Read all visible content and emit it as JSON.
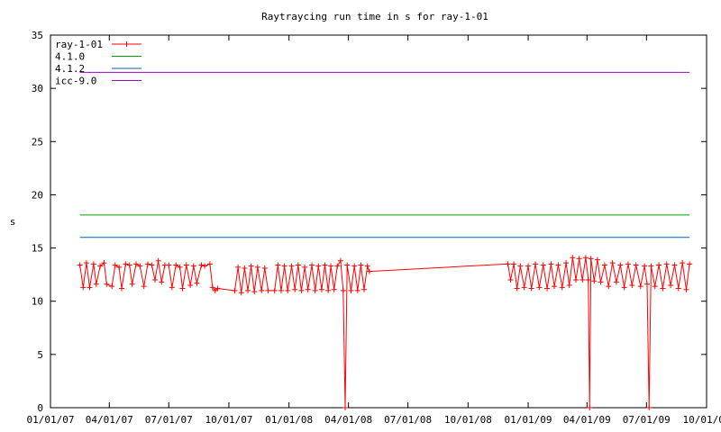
{
  "chart_data": {
    "type": "line",
    "title": "Raytraycing run time in s for ray-1-01",
    "xlabel": "",
    "ylabel": "s",
    "xlim": [
      "2007-01-01",
      "2009-10-01"
    ],
    "ylim": [
      0,
      35
    ],
    "x_ticks": [
      "01/01/07",
      "04/01/07",
      "07/01/07",
      "10/01/07",
      "01/01/08",
      "04/01/08",
      "07/01/08",
      "10/01/08",
      "01/01/09",
      "04/01/09",
      "07/01/09",
      "10/01/09"
    ],
    "y_ticks": [
      "0",
      "5",
      "10",
      "15",
      "20",
      "25",
      "30",
      "35"
    ],
    "grid": false,
    "legend_position": "top-left",
    "series": [
      {
        "name": "ray-1-01",
        "color": "#ff0000",
        "marker": "plus",
        "points": [
          [
            "2007-02-15",
            13.4
          ],
          [
            "2007-02-20",
            11.3
          ],
          [
            "2007-02-25",
            13.6
          ],
          [
            "2007-03-02",
            11.3
          ],
          [
            "2007-03-08",
            13.5
          ],
          [
            "2007-03-12",
            11.6
          ],
          [
            "2007-03-18",
            13.3
          ],
          [
            "2007-03-24",
            13.6
          ],
          [
            "2007-03-28",
            11.6
          ],
          [
            "2007-04-05",
            11.4
          ],
          [
            "2007-04-10",
            13.4
          ],
          [
            "2007-04-16",
            13.2
          ],
          [
            "2007-04-20",
            11.2
          ],
          [
            "2007-04-26",
            13.5
          ],
          [
            "2007-05-02",
            13.4
          ],
          [
            "2007-05-06",
            11.6
          ],
          [
            "2007-05-12",
            13.5
          ],
          [
            "2007-05-18",
            13.3
          ],
          [
            "2007-05-24",
            11.4
          ],
          [
            "2007-05-30",
            13.5
          ],
          [
            "2007-06-05",
            13.4
          ],
          [
            "2007-06-10",
            12.0
          ],
          [
            "2007-06-15",
            13.8
          ],
          [
            "2007-06-20",
            11.8
          ],
          [
            "2007-06-25",
            13.4
          ],
          [
            "2007-07-01",
            13.4
          ],
          [
            "2007-07-06",
            11.3
          ],
          [
            "2007-07-12",
            13.4
          ],
          [
            "2007-07-18",
            13.2
          ],
          [
            "2007-07-22",
            11.2
          ],
          [
            "2007-07-28",
            13.4
          ],
          [
            "2007-08-03",
            11.5
          ],
          [
            "2007-08-08",
            13.3
          ],
          [
            "2007-08-13",
            11.7
          ],
          [
            "2007-08-20",
            13.4
          ],
          [
            "2007-08-25",
            13.3
          ],
          [
            "2007-09-02",
            13.5
          ],
          [
            "2007-09-06",
            11.3
          ],
          [
            "2007-09-10",
            11.0
          ],
          [
            "2007-09-14",
            11.2
          ],
          [
            "2007-10-10",
            11.0
          ],
          [
            "2007-10-15",
            13.2
          ],
          [
            "2007-10-20",
            10.8
          ],
          [
            "2007-10-25",
            13.1
          ],
          [
            "2007-10-30",
            11.0
          ],
          [
            "2007-11-04",
            13.3
          ],
          [
            "2007-11-09",
            10.9
          ],
          [
            "2007-11-14",
            13.2
          ],
          [
            "2007-11-20",
            11.0
          ],
          [
            "2007-11-25",
            13.1
          ],
          [
            "2007-11-30",
            11.0
          ],
          [
            "2007-12-10",
            11.0
          ],
          [
            "2007-12-15",
            13.4
          ],
          [
            "2007-12-20",
            11.0
          ],
          [
            "2007-12-25",
            13.3
          ],
          [
            "2007-12-30",
            11.0
          ],
          [
            "2008-01-05",
            13.3
          ],
          [
            "2008-01-10",
            11.1
          ],
          [
            "2008-01-15",
            13.4
          ],
          [
            "2008-01-20",
            11.0
          ],
          [
            "2008-01-25",
            13.2
          ],
          [
            "2008-01-30",
            11.1
          ],
          [
            "2008-02-05",
            13.4
          ],
          [
            "2008-02-10",
            11.0
          ],
          [
            "2008-02-15",
            13.3
          ],
          [
            "2008-02-20",
            11.1
          ],
          [
            "2008-02-25",
            13.4
          ],
          [
            "2008-03-01",
            11.0
          ],
          [
            "2008-03-05",
            13.3
          ],
          [
            "2008-03-10",
            11.1
          ],
          [
            "2008-03-15",
            13.3
          ],
          [
            "2008-03-20",
            13.8
          ],
          [
            "2008-03-24",
            11.0
          ],
          [
            "2008-03-27",
            0.0
          ],
          [
            "2008-03-30",
            13.4
          ],
          [
            "2008-04-05",
            11.0
          ],
          [
            "2008-04-10",
            13.3
          ],
          [
            "2008-04-15",
            11.0
          ],
          [
            "2008-04-20",
            13.4
          ],
          [
            "2008-04-25",
            11.1
          ],
          [
            "2008-04-30",
            13.3
          ],
          [
            "2008-05-03",
            12.8
          ],
          [
            "2008-12-01",
            13.5
          ],
          [
            "2008-12-05",
            12.0
          ],
          [
            "2008-12-10",
            13.5
          ],
          [
            "2008-12-15",
            11.2
          ],
          [
            "2008-12-20",
            13.3
          ],
          [
            "2008-12-26",
            11.3
          ],
          [
            "2009-01-01",
            13.3
          ],
          [
            "2009-01-06",
            11.2
          ],
          [
            "2009-01-12",
            13.5
          ],
          [
            "2009-01-18",
            11.3
          ],
          [
            "2009-01-24",
            13.4
          ],
          [
            "2009-01-30",
            11.2
          ],
          [
            "2009-02-05",
            13.5
          ],
          [
            "2009-02-10",
            11.4
          ],
          [
            "2009-02-16",
            13.4
          ],
          [
            "2009-02-22",
            11.3
          ],
          [
            "2009-02-28",
            13.6
          ],
          [
            "2009-03-05",
            11.5
          ],
          [
            "2009-03-10",
            14.1
          ],
          [
            "2009-03-15",
            12.0
          ],
          [
            "2009-03-20",
            14.0
          ],
          [
            "2009-03-25",
            12.0
          ],
          [
            "2009-03-30",
            14.1
          ],
          [
            "2009-04-03",
            12.0
          ],
          [
            "2009-04-05",
            0.0
          ],
          [
            "2009-04-07",
            14.0
          ],
          [
            "2009-04-12",
            11.9
          ],
          [
            "2009-04-17",
            13.9
          ],
          [
            "2009-04-22",
            11.8
          ],
          [
            "2009-04-28",
            13.4
          ],
          [
            "2009-05-04",
            11.4
          ],
          [
            "2009-05-10",
            13.6
          ],
          [
            "2009-05-16",
            11.8
          ],
          [
            "2009-05-22",
            13.4
          ],
          [
            "2009-05-28",
            11.3
          ],
          [
            "2009-06-03",
            13.5
          ],
          [
            "2009-06-09",
            11.5
          ],
          [
            "2009-06-15",
            13.4
          ],
          [
            "2009-06-22",
            11.4
          ],
          [
            "2009-06-28",
            13.3
          ],
          [
            "2009-07-02",
            11.6
          ],
          [
            "2009-07-05",
            0.0
          ],
          [
            "2009-07-08",
            13.3
          ],
          [
            "2009-07-14",
            11.4
          ],
          [
            "2009-07-20",
            13.4
          ],
          [
            "2009-07-26",
            11.2
          ],
          [
            "2009-08-01",
            13.5
          ],
          [
            "2009-08-07",
            11.5
          ],
          [
            "2009-08-13",
            13.4
          ],
          [
            "2009-08-19",
            11.2
          ],
          [
            "2009-08-25",
            13.6
          ],
          [
            "2009-08-31",
            11.1
          ],
          [
            "2009-09-05",
            13.5
          ]
        ]
      },
      {
        "name": "4.1.0",
        "color": "#00a000",
        "points": [
          [
            "2007-02-15",
            18.1
          ],
          [
            "2009-09-05",
            18.1
          ]
        ]
      },
      {
        "name": "4.1.2",
        "color": "#0060c0",
        "points": [
          [
            "2007-02-15",
            16.0
          ],
          [
            "2009-09-05",
            16.0
          ]
        ]
      },
      {
        "name": "icc-9.0",
        "color": "#a000c0",
        "points": [
          [
            "2007-02-15",
            31.5
          ],
          [
            "2009-09-05",
            31.5
          ]
        ]
      }
    ]
  }
}
